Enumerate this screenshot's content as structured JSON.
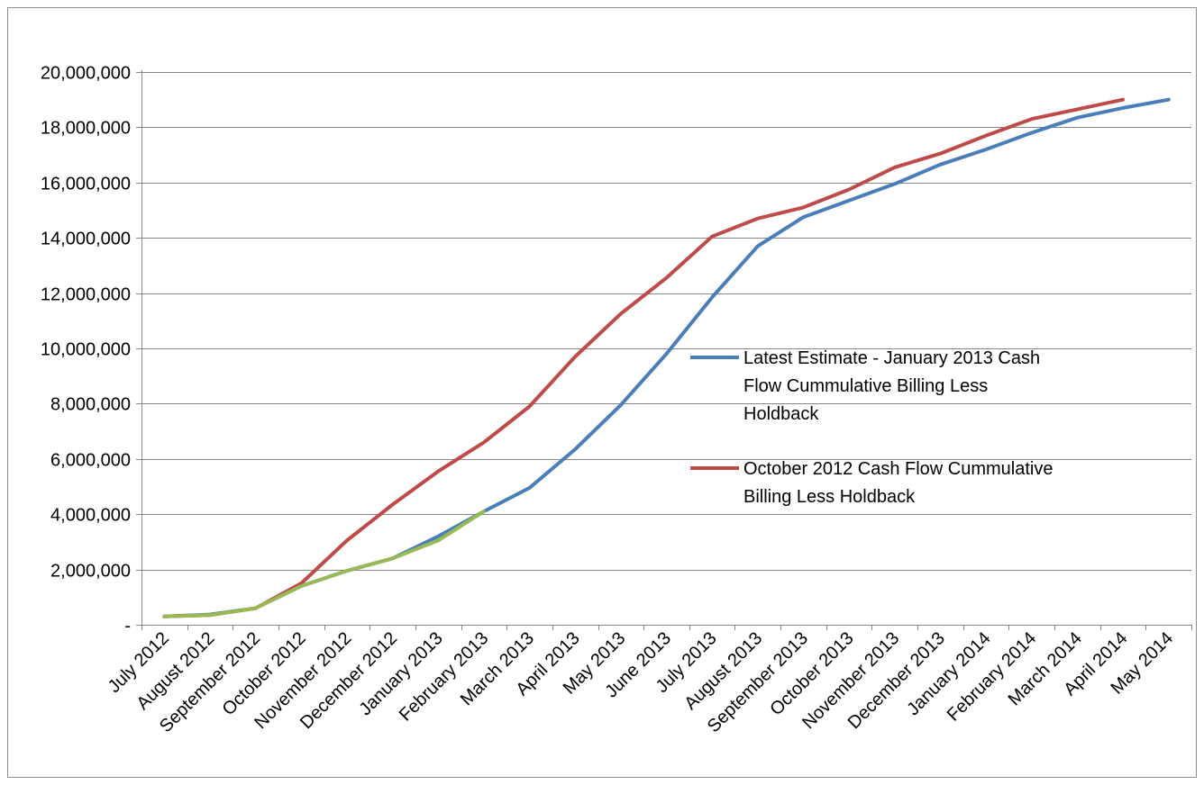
{
  "chart_data": {
    "type": "line",
    "title": "",
    "xlabel": "",
    "ylabel": "",
    "ylim": [
      0,
      20000000
    ],
    "y_ticks": [
      0,
      2000000,
      4000000,
      6000000,
      8000000,
      10000000,
      12000000,
      14000000,
      16000000,
      18000000,
      20000000
    ],
    "y_tick_labels": [
      "-",
      "2,000,000",
      "4,000,000",
      "6,000,000",
      "8,000,000",
      "10,000,000",
      "12,000,000",
      "14,000,000",
      "16,000,000",
      "18,000,000",
      "20,000,000"
    ],
    "grid": "horizontal",
    "legend_position": "right-center",
    "categories": [
      "July 2012",
      "August 2012",
      "September 2012",
      "October 2012",
      "November 2012",
      "December 2012",
      "January 2013",
      "February 2013",
      "March 2013",
      "April 2013",
      "May 2013",
      "June 2013",
      "July 2013",
      "August 2013",
      "September 2013",
      "October 2013",
      "November 2013",
      "December 2013",
      "January 2014",
      "February 2014",
      "March 2014",
      "April 2014",
      "May 2014"
    ],
    "series": [
      {
        "name": "Latest Estimate - January 2013 Cash Flow Cummulative Billing Less Holdback",
        "legend_lines": [
          "Latest Estimate - January 2013 Cash",
          "Flow Cummulative Billing Less",
          "Holdback"
        ],
        "color": "#4a7ebb",
        "values": [
          300000,
          370000,
          600000,
          1400000,
          1950000,
          2400000,
          3200000,
          4100000,
          4950000,
          6350000,
          7950000,
          9800000,
          11850000,
          13700000,
          14750000,
          15350000,
          15950000,
          16650000,
          17200000,
          17800000,
          18350000,
          18700000,
          19000000
        ]
      },
      {
        "name": "October 2012 Cash Flow Cummulative Billing Less Holdback",
        "legend_lines": [
          "October 2012 Cash Flow Cummulative",
          "Billing Less Holdback"
        ],
        "color": "#be4b48",
        "values": [
          300000,
          350000,
          600000,
          1500000,
          3050000,
          4350000,
          5550000,
          6600000,
          7900000,
          9700000,
          11250000,
          12550000,
          14050000,
          14700000,
          15100000,
          15750000,
          16550000,
          17050000,
          17700000,
          18300000,
          18650000,
          19000000,
          null
        ]
      },
      {
        "color": "#98b954",
        "values": [
          300000,
          350000,
          600000,
          1400000,
          1950000,
          2400000,
          3050000,
          4100000,
          null,
          null,
          null,
          null,
          null,
          null,
          null,
          null,
          null,
          null,
          null,
          null,
          null,
          null,
          null
        ]
      }
    ]
  }
}
